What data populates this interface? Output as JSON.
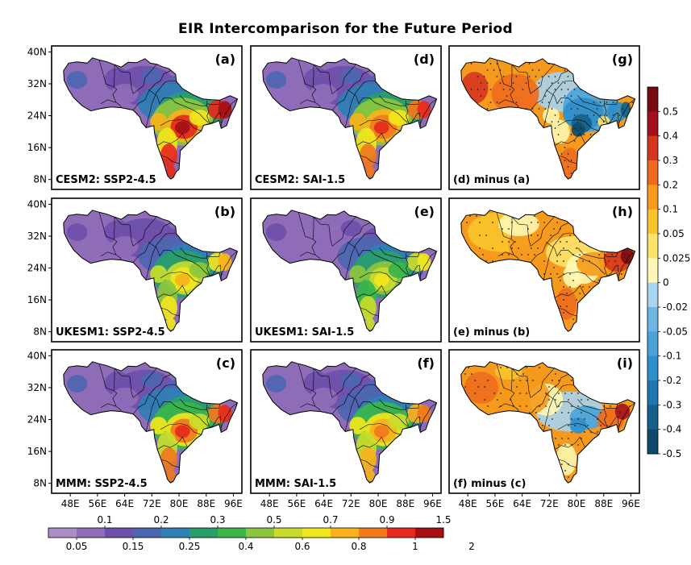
{
  "title": "EIR Intercomparison for the Future Period",
  "panels": [
    {
      "id": "a",
      "label": "(a)",
      "caption": "CESM2: SSP2-4.5",
      "kind": "eir",
      "intensity": 1.0
    },
    {
      "id": "d",
      "label": "(d)",
      "caption": "CESM2: SAI-1.5",
      "kind": "eir",
      "intensity": 0.95
    },
    {
      "id": "g",
      "label": "(g)",
      "caption": "(d) minus (a)",
      "kind": "diff",
      "stipple": true
    },
    {
      "id": "b",
      "label": "(b)",
      "caption": "UKESM1: SSP2-4.5",
      "kind": "eir",
      "intensity": 0.75
    },
    {
      "id": "e",
      "label": "(e)",
      "caption": "UKESM1: SAI-1.5",
      "kind": "eir",
      "intensity": 0.7
    },
    {
      "id": "h",
      "label": "(h)",
      "caption": "(e) minus (b)",
      "kind": "diff",
      "stipple": true
    },
    {
      "id": "c",
      "label": "(c)",
      "caption": "MMM: SSP2-4.5",
      "kind": "eir",
      "intensity": 0.9
    },
    {
      "id": "f",
      "label": "(f)",
      "caption": "MMM: SAI-1.5",
      "kind": "eir",
      "intensity": 0.85
    },
    {
      "id": "i",
      "label": "(i)",
      "caption": "(f) minus (c)",
      "kind": "diff",
      "stipple": true
    }
  ],
  "lat_ticks": [
    "40N",
    "32N",
    "24N",
    "16N",
    "8N"
  ],
  "lon_ticks": [
    "48E",
    "56E",
    "64E",
    "72E",
    "80E",
    "88E",
    "96E"
  ],
  "eir_colorbar": {
    "colors": [
      "#a98fc6",
      "#8e6cb8",
      "#6e4fa9",
      "#4d66b1",
      "#2f7fb5",
      "#2a9d6a",
      "#3bb54a",
      "#8cc63e",
      "#c8dc2e",
      "#f1e61c",
      "#f7b21b",
      "#f07a1c",
      "#e52a1d",
      "#a50f15"
    ],
    "labels_top": [
      "0.1",
      "0.2",
      "0.3",
      "0.5",
      "0.7",
      "0.9",
      "1.5"
    ],
    "labels_bottom": [
      "0.05",
      "0.15",
      "0.25",
      "0.4",
      "0.6",
      "0.8",
      "1",
      "2"
    ]
  },
  "diff_colorbar": {
    "colors": [
      "#0d4a6b",
      "#14608a",
      "#1f77b4",
      "#2f8fca",
      "#4aa3d8",
      "#6db6e3",
      "#a8d4ef",
      "#fff7b3",
      "#fde36a",
      "#f9c42b",
      "#f59a1c",
      "#ee6b1e",
      "#d6361e",
      "#a3121c",
      "#7a0a12"
    ],
    "labels": [
      "0.5",
      "0.4",
      "0.3",
      "0.2",
      "0.1",
      "0.05",
      "0.025",
      "0",
      "-0.02",
      "-0.05",
      "-0.1",
      "-0.2",
      "-0.3",
      "-0.4",
      "-0.5"
    ]
  },
  "colors": {
    "land_border": "#000000",
    "background": "#ffffff"
  }
}
